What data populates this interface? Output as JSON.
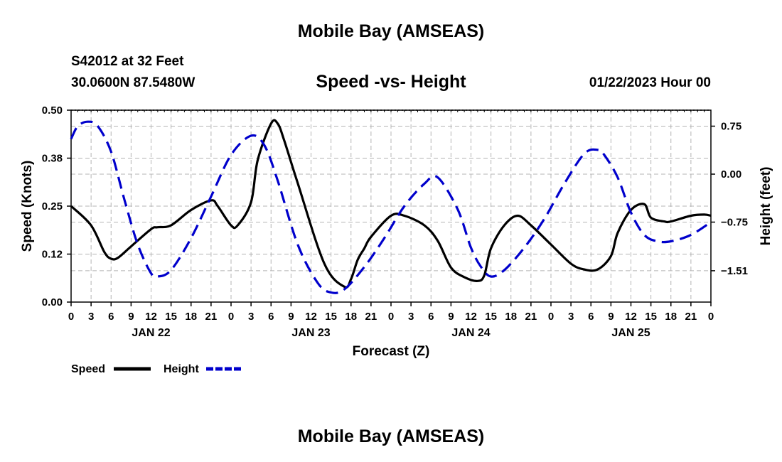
{
  "header": {
    "title": "Mobile Bay (AMSEAS)",
    "station": "S42012 at 32 Feet",
    "coords": "30.0600N  87.5480W",
    "chart_title": "Speed -vs- Height",
    "datetime": "01/22/2023 Hour 00"
  },
  "footer": {
    "title": "Mobile Bay (AMSEAS)"
  },
  "colors": {
    "speed": "#000000",
    "height": "#0000cc",
    "grid": "#b4b4b4"
  },
  "chart_data": {
    "type": "line",
    "title": "Speed -vs- Height",
    "xlabel": "Forecast (Z)",
    "ylabel": "Speed (Knots)",
    "y2label": "Height (feet)",
    "xlim": [
      0,
      96
    ],
    "ylim": [
      0,
      0.5
    ],
    "y2lim": [
      -2,
      1
    ],
    "x_tick_step_hours": 3,
    "x_tick_labels": [
      "0",
      "3",
      "6",
      "9",
      "12",
      "15",
      "18",
      "21",
      "0",
      "3",
      "6",
      "9",
      "12",
      "15",
      "18",
      "21",
      "0",
      "3",
      "6",
      "9",
      "12",
      "15",
      "18",
      "21",
      "0",
      "3",
      "6",
      "9",
      "12",
      "15",
      "18",
      "21",
      "0"
    ],
    "day_labels": [
      {
        "hour": 12,
        "label": "JAN 22"
      },
      {
        "hour": 36,
        "label": "JAN 23"
      },
      {
        "hour": 60,
        "label": "JAN 24"
      },
      {
        "hour": 84,
        "label": "JAN 25"
      }
    ],
    "y_ticks": [
      0.0,
      0.125,
      0.25,
      0.375,
      0.5
    ],
    "y_tick_labels": [
      "0.00",
      "0.12",
      "0.25",
      "0.38",
      "0.50"
    ],
    "y2_ticks": [
      0.75,
      0.0,
      -0.75,
      -1.51
    ],
    "y2_tick_labels": [
      "0.75",
      "0.00",
      "−0.75",
      "−1.51"
    ],
    "legend": [
      {
        "name": "Speed",
        "style": "solid"
      },
      {
        "name": "Height",
        "style": "dashed"
      }
    ],
    "series": [
      {
        "name": "Speed",
        "axis": "left",
        "x": [
          0,
          3,
          5,
          6,
          7,
          9,
          12,
          13,
          15,
          18,
          21,
          22,
          24,
          25,
          27,
          28,
          30,
          31,
          32,
          34,
          38,
          41,
          42,
          43,
          44,
          45,
          48,
          50,
          53,
          55,
          57,
          59,
          61,
          62,
          63,
          65,
          67,
          69,
          72,
          75,
          77,
          79,
          81,
          82,
          84,
          86,
          87,
          89,
          90,
          93,
          95,
          96
        ],
        "y": [
          0.25,
          0.2,
          0.13,
          0.113,
          0.115,
          0.145,
          0.19,
          0.195,
          0.2,
          0.24,
          0.265,
          0.25,
          0.2,
          0.2,
          0.26,
          0.37,
          0.465,
          0.465,
          0.42,
          0.31,
          0.1,
          0.04,
          0.06,
          0.11,
          0.14,
          0.17,
          0.225,
          0.225,
          0.2,
          0.16,
          0.09,
          0.065,
          0.055,
          0.07,
          0.14,
          0.2,
          0.225,
          0.2,
          0.15,
          0.1,
          0.085,
          0.085,
          0.12,
          0.18,
          0.24,
          0.255,
          0.22,
          0.21,
          0.21,
          0.225,
          0.228,
          0.225
        ]
      },
      {
        "name": "Height",
        "axis": "right",
        "x": [
          0,
          1,
          2.5,
          4,
          6,
          8,
          10,
          12,
          13,
          15,
          18,
          21,
          24,
          27,
          29,
          31,
          34,
          37,
          39,
          41,
          44,
          47,
          50,
          53,
          55,
          58,
          60,
          61.5,
          63,
          65,
          68,
          71,
          74,
          77,
          79,
          80,
          82,
          84,
          86,
          88,
          90,
          93,
          96
        ],
        "y": [
          0.55,
          0.75,
          0.82,
          0.75,
          0.35,
          -0.4,
          -1.1,
          -1.55,
          -1.6,
          -1.5,
          -1.0,
          -0.35,
          0.3,
          0.6,
          0.45,
          -0.1,
          -1.1,
          -1.7,
          -1.85,
          -1.8,
          -1.45,
          -1.0,
          -0.5,
          -0.15,
          -0.05,
          -0.55,
          -1.15,
          -1.45,
          -1.6,
          -1.5,
          -1.15,
          -0.7,
          -0.15,
          0.32,
          0.38,
          0.3,
          -0.05,
          -0.6,
          -0.95,
          -1.05,
          -1.05,
          -0.95,
          -0.75
        ]
      }
    ]
  }
}
